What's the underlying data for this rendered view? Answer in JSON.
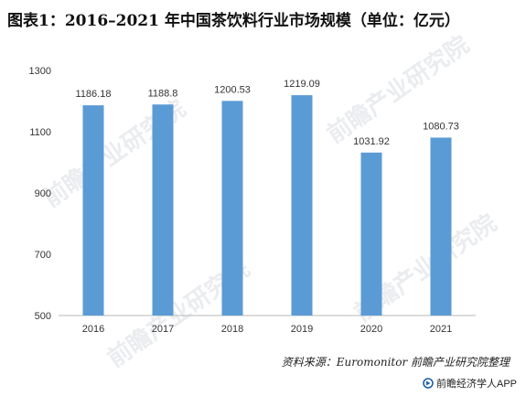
{
  "title": "图表1：2016–2021 年中国茶饮料行业市场规模（单位：亿元）",
  "source": "资料来源：Euromonitor 前瞻产业研究院整理",
  "brand": "前瞻经济学人APP",
  "watermark": "前瞻产业研究院",
  "colors": {
    "bar": "#5b9bd5",
    "axis": "#b8b8b8",
    "text": "#333333",
    "watermark": "#d9dde2"
  },
  "chart_data": {
    "type": "bar",
    "categories": [
      "2016",
      "2017",
      "2018",
      "2019",
      "2020",
      "2021"
    ],
    "values": [
      1186.18,
      1188.8,
      1200.53,
      1219.09,
      1031.92,
      1080.73
    ],
    "value_labels": [
      "1186.18",
      "1188.8",
      "1200.53",
      "1219.09",
      "1031.92",
      "1080.73"
    ],
    "yticks": [
      500,
      700,
      900,
      1100,
      1300
    ],
    "ylim": [
      500,
      1300
    ],
    "grid": false,
    "xlabel": "",
    "ylabel": ""
  }
}
